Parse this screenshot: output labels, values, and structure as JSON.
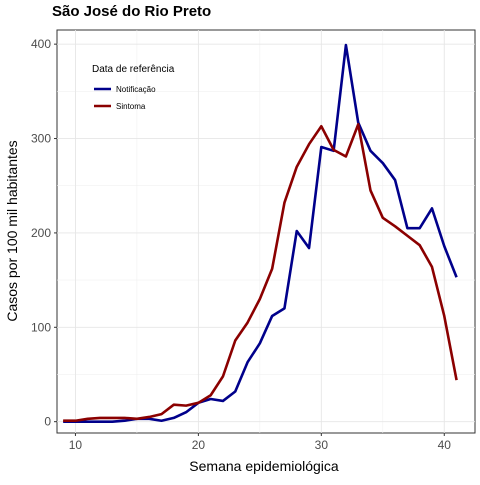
{
  "chart_data": {
    "type": "line",
    "title": "São José do Rio Preto",
    "xlabel": "Semana epidemiológica",
    "ylabel": "Casos por 100 mil habitantes",
    "xlim": [
      8.5,
      42.5
    ],
    "ylim": [
      -12,
      415
    ],
    "x_ticks": [
      10,
      20,
      30,
      40
    ],
    "y_ticks": [
      0,
      100,
      200,
      300,
      400
    ],
    "grid": true,
    "legend": {
      "title": "Data de referência",
      "position": "top-left"
    },
    "x": [
      9,
      10,
      11,
      12,
      13,
      14,
      15,
      16,
      17,
      18,
      19,
      20,
      21,
      22,
      23,
      24,
      25,
      26,
      27,
      28,
      29,
      30,
      31,
      32,
      33,
      34,
      35,
      36,
      37,
      38,
      39,
      40,
      41
    ],
    "series": [
      {
        "name": "Notificação",
        "color": "#00008b",
        "values": [
          0,
          0,
          0,
          0,
          0,
          1,
          3,
          3,
          1,
          4,
          10,
          20,
          24,
          22,
          32,
          63,
          83,
          112,
          120,
          202,
          184,
          291,
          287,
          399,
          317,
          287,
          274,
          256,
          205,
          205,
          226,
          186,
          153
        ]
      },
      {
        "name": "Sintoma",
        "color": "#8b0000",
        "values": [
          1,
          1,
          3,
          4,
          4,
          4,
          3,
          5,
          8,
          18,
          17,
          20,
          28,
          48,
          86,
          105,
          130,
          162,
          232,
          270,
          294,
          313,
          288,
          281,
          315,
          245,
          216,
          207,
          197,
          187,
          164,
          112,
          44
        ]
      }
    ]
  }
}
